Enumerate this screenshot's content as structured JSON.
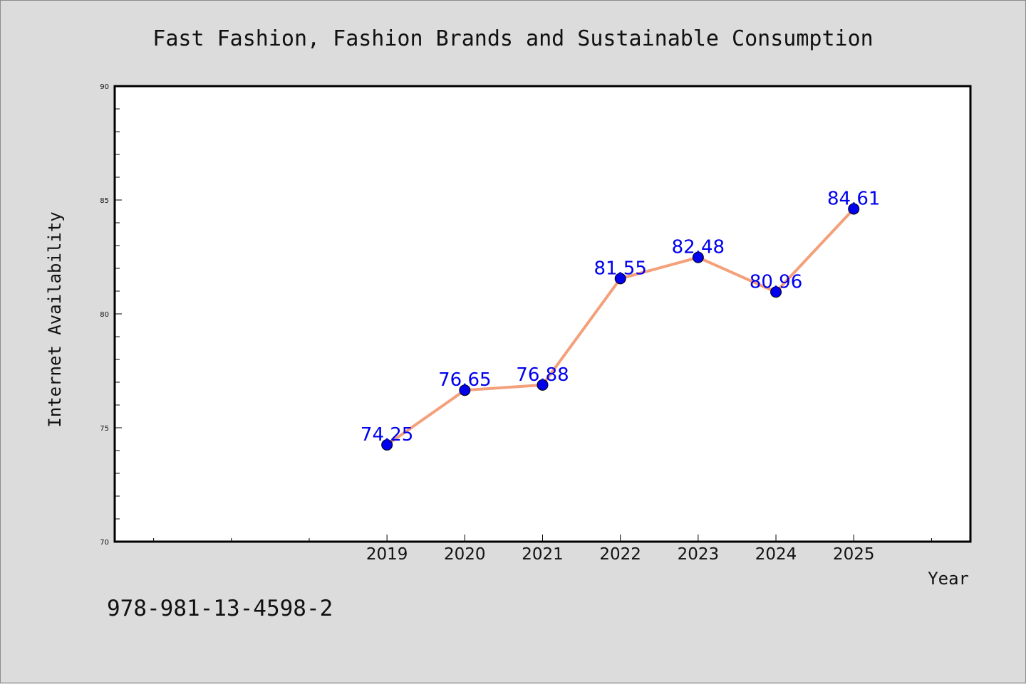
{
  "chart_data": {
    "type": "line",
    "title": "Fast Fashion, Fashion Brands and Sustainable Consumption",
    "xlabel": "Year",
    "ylabel": "Internet Availability",
    "x": [
      2019,
      2020,
      2021,
      2022,
      2023,
      2024,
      2025
    ],
    "x_tick_labels": [
      "2019",
      "2020",
      "2021",
      "2022",
      "2023",
      "2024",
      "2025"
    ],
    "xlim": [
      2015.5,
      2026.5
    ],
    "ylim": [
      70,
      90
    ],
    "y_ticks": [
      70,
      75,
      80,
      85,
      90
    ],
    "series": [
      {
        "values": [
          74.25,
          76.65,
          76.88,
          81.55,
          82.48,
          80.96,
          84.61
        ],
        "labels": [
          "74.25",
          "76.65",
          "76.88",
          "81.55",
          "82.48",
          "80.96",
          "84.61"
        ]
      }
    ],
    "grid": false,
    "colors": {
      "line": "#f4a07a",
      "marker": "#0000ee",
      "data_label": "#0000ee",
      "plot_background": "#ffffff",
      "figure_background": "#dcdcdc"
    }
  },
  "footer": {
    "text": "978-981-13-4598-2"
  }
}
